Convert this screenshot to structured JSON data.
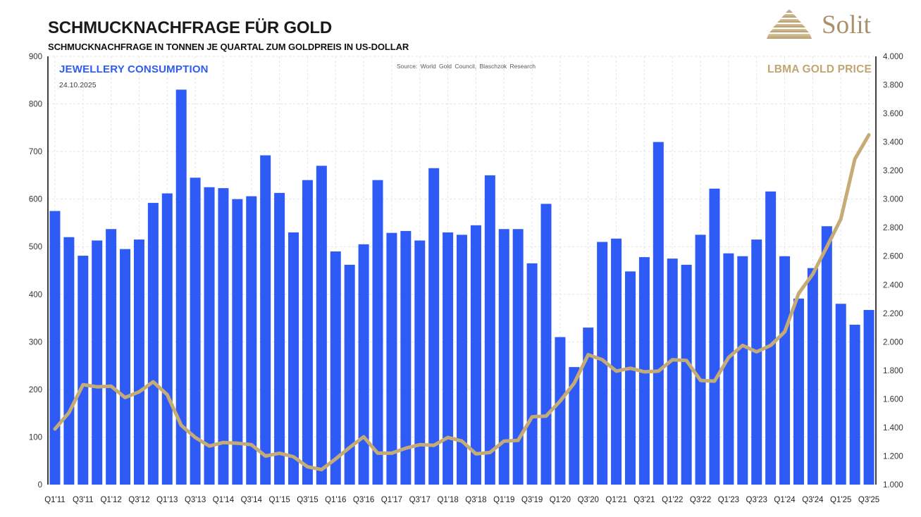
{
  "header": {
    "title": "SCHMUCKNACHFRAGE FÜR GOLD",
    "subtitle": "SCHMUCKNACHFRAGE IN TONNEN JE QUARTAL ZUM GOLDPREIS IN US-DOLLAR",
    "logo_text": "Solit"
  },
  "chart": {
    "legend_left": "JEWELLERY CONSUMPTION",
    "date": "24.10.2025",
    "source": "Source:  World  Gold Council,  Blaschzok  Research",
    "legend_right": "LBMA GOLD PRICE"
  },
  "colors": {
    "bar": "#2e5bf6",
    "line": "#c5ab76",
    "grid": "#e4e4e4",
    "axis": "#000000",
    "legend_left": "#2e5bf5",
    "legend_right": "#c1a671",
    "logo_gold_light": "#d8c8a2",
    "logo_gold_dark": "#b49b6c"
  },
  "chart_data": {
    "type": "bar+line",
    "title": "SCHMUCKNACHFRAGE FÜR GOLD",
    "subtitle": "SCHMUCKNACHFRAGE IN TONNEN JE QUARTAL ZUM GOLDPREIS IN US-DOLLAR",
    "categories": [
      "Q1'11",
      "Q2'11",
      "Q3'11",
      "Q4'11",
      "Q1'12",
      "Q2'12",
      "Q3'12",
      "Q4'12",
      "Q1'13",
      "Q2'13",
      "Q3'13",
      "Q4'13",
      "Q1'14",
      "Q2'14",
      "Q3'14",
      "Q4'14",
      "Q1'15",
      "Q2'15",
      "Q3'15",
      "Q4'15",
      "Q1'16",
      "Q2'16",
      "Q3'16",
      "Q4'16",
      "Q1'17",
      "Q2'17",
      "Q3'17",
      "Q4'17",
      "Q1'18",
      "Q2'18",
      "Q3'18",
      "Q4'18",
      "Q1'19",
      "Q2'19",
      "Q3'19",
      "Q4'19",
      "Q1'20",
      "Q2'20",
      "Q3'20",
      "Q4'20",
      "Q1'21",
      "Q2'21",
      "Q3'21",
      "Q4'21",
      "Q1'22",
      "Q2'22",
      "Q3'22",
      "Q4'22",
      "Q1'23",
      "Q2'23",
      "Q3'23",
      "Q4'23",
      "Q1'24",
      "Q2'24",
      "Q3'24",
      "Q4'24",
      "Q1'25",
      "Q2'25",
      "Q3'25"
    ],
    "x_ticks_every": 2,
    "series": [
      {
        "name": "JEWELLERY CONSUMPTION",
        "type": "bar",
        "axis": "left",
        "unit": "tonnes per quarter",
        "values": [
          575,
          520,
          481,
          513,
          537,
          495,
          515,
          592,
          612,
          830,
          645,
          625,
          623,
          600,
          606,
          692,
          613,
          530,
          640,
          670,
          490,
          462,
          505,
          640,
          529,
          533,
          513,
          665,
          530,
          525,
          545,
          650,
          537,
          537,
          465,
          590,
          310,
          247,
          330,
          510,
          517,
          448,
          478,
          720,
          475,
          462,
          525,
          622,
          486,
          480,
          515,
          616,
          480,
          391,
          455,
          543,
          380,
          336,
          367
        ]
      },
      {
        "name": "LBMA GOLD PRICE",
        "type": "line",
        "axis": "right",
        "unit": "US-Dollar",
        "values": [
          1390,
          1505,
          1700,
          1685,
          1690,
          1610,
          1650,
          1720,
          1630,
          1415,
          1330,
          1270,
          1295,
          1290,
          1280,
          1200,
          1220,
          1195,
          1125,
          1105,
          1180,
          1260,
          1335,
          1220,
          1220,
          1255,
          1280,
          1275,
          1330,
          1305,
          1215,
          1225,
          1305,
          1310,
          1475,
          1480,
          1585,
          1710,
          1910,
          1875,
          1795,
          1815,
          1790,
          1795,
          1875,
          1870,
          1730,
          1725,
          1890,
          1975,
          1930,
          1975,
          2070,
          2340,
          2475,
          2665,
          2860,
          3280,
          3450
        ]
      }
    ],
    "left_axis": {
      "min": 0,
      "max": 900,
      "tick_values": [
        0,
        100,
        200,
        300,
        400,
        500,
        600,
        700,
        800,
        900
      ],
      "tick_labels": [
        "0",
        "100",
        "200",
        "300",
        "400",
        "500",
        "600",
        "700",
        "800",
        "900"
      ]
    },
    "right_axis": {
      "min": 1000,
      "max": 4000,
      "tick_values": [
        1000,
        1200,
        1400,
        1600,
        1800,
        2000,
        2200,
        2400,
        2600,
        2800,
        3000,
        3200,
        3400,
        3600,
        3800,
        4000
      ],
      "tick_labels": [
        "1.000",
        "1.200",
        "1.400",
        "1.600",
        "1.800",
        "2.000",
        "2.200",
        "2.400",
        "2.600",
        "2.800",
        "3.000",
        "3.200",
        "3.400",
        "3.600",
        "3.800",
        "4.000"
      ]
    },
    "grid": true,
    "legend_position": "inside-top"
  }
}
